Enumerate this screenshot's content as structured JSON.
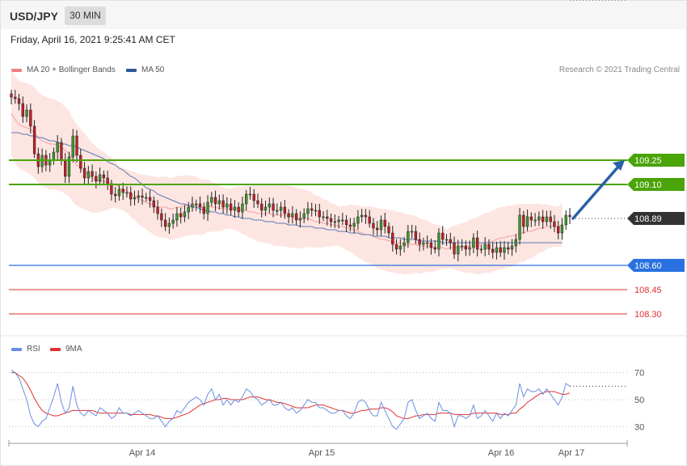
{
  "header": {
    "symbol": "USD/JPY",
    "timeframe": "30 MIN"
  },
  "timestamp": "Friday, April 16, 2021 9:25:41 AM CET",
  "legend": {
    "ma20_label": "MA 20 + Bollinger Bands",
    "ma50_label": "MA 50",
    "ma20_color": "#f08080",
    "ma50_color": "#2d5a9a"
  },
  "copyright": "Research © 2021 Trading Central",
  "rsi_legend": {
    "rsi_label": "RSI",
    "ma9_label": "9MA",
    "rsi_color": "#6a8fe0",
    "ma9_color": "#e03030"
  },
  "chart_data": [
    {
      "type": "candlestick",
      "title": "",
      "ylim": [
        108.2,
        109.75
      ],
      "x_ticks": [
        "Apr 14",
        "Apr 15",
        "Apr 16",
        "Apr 17"
      ],
      "current_price": "108.89",
      "levels": [
        {
          "label": "109.25",
          "value": 109.25,
          "kind": "resistance",
          "color": "#4aa40a"
        },
        {
          "label": "109.10",
          "value": 109.1,
          "kind": "resistance",
          "color": "#4aa40a"
        },
        {
          "label": "108.60",
          "value": 108.6,
          "kind": "support",
          "color": "#2a70e0"
        },
        {
          "label": "108.45",
          "value": 108.45,
          "kind": "support",
          "color": "#e03030"
        },
        {
          "label": "108.30",
          "value": 108.3,
          "kind": "support",
          "color": "#e03030"
        }
      ],
      "close_series": [
        109.64,
        109.63,
        109.6,
        109.52,
        109.56,
        109.46,
        109.29,
        109.21,
        109.28,
        109.22,
        109.25,
        109.3,
        109.36,
        109.25,
        109.15,
        109.27,
        109.4,
        109.28,
        109.2,
        109.14,
        109.18,
        109.15,
        109.12,
        109.16,
        109.14,
        109.1,
        109.04,
        109.03,
        109.07,
        109.05,
        109.05,
        109.01,
        109.02,
        109.03,
        109.02,
        109.02,
        109.0,
        108.96,
        108.92,
        108.88,
        108.84,
        108.86,
        108.88,
        108.92,
        108.9,
        108.93,
        108.96,
        108.98,
        108.98,
        108.96,
        108.92,
        108.99,
        109.02,
        108.98,
        109.0,
        108.96,
        108.98,
        108.94,
        108.96,
        108.93,
        108.98,
        109.04,
        109.04,
        109.0,
        108.98,
        108.94,
        108.96,
        108.98,
        108.94,
        108.94,
        108.96,
        108.92,
        108.9,
        108.92,
        108.88,
        108.89,
        108.92,
        108.95,
        108.94,
        108.94,
        108.9,
        108.9,
        108.89,
        108.87,
        108.87,
        108.88,
        108.88,
        108.85,
        108.84,
        108.86,
        108.9,
        108.91,
        108.9,
        108.86,
        108.83,
        108.82,
        108.88,
        108.84,
        108.8,
        108.73,
        108.7,
        108.72,
        108.74,
        108.81,
        108.81,
        108.76,
        108.73,
        108.74,
        108.74,
        108.71,
        108.7,
        108.8,
        108.76,
        108.76,
        108.74,
        108.67,
        108.72,
        108.72,
        108.7,
        108.71,
        108.77,
        108.7,
        108.7,
        108.73,
        108.7,
        108.68,
        108.71,
        108.68,
        108.71,
        108.7,
        108.72,
        108.76,
        108.91,
        108.84,
        108.9,
        108.88,
        108.88,
        108.9,
        108.87,
        108.9,
        108.87,
        108.84,
        108.8,
        108.85,
        108.91,
        108.9
      ],
      "ma20_series": [
        109.54,
        109.5,
        109.47,
        109.46,
        109.45,
        109.44,
        109.42,
        109.39,
        109.37,
        109.36,
        109.35,
        109.35,
        109.34,
        109.33,
        109.31,
        109.29,
        109.25,
        109.22,
        109.2,
        109.18,
        109.16,
        109.14,
        109.13,
        109.12,
        109.12,
        109.11,
        109.11,
        109.1,
        109.08,
        109.07,
        109.06,
        109.04,
        109.03,
        109.01,
        109.0,
        108.99,
        108.98,
        108.97,
        108.96,
        108.96,
        108.96,
        108.95,
        108.95,
        108.96,
        108.96,
        108.97,
        108.97,
        108.97,
        108.97,
        108.96,
        108.96,
        108.97,
        108.96,
        108.96,
        108.95,
        108.95,
        108.95,
        108.95,
        108.95,
        108.95,
        108.94,
        108.94,
        108.93,
        108.93,
        108.92,
        108.92,
        108.92,
        108.92,
        108.91,
        108.91,
        108.91,
        108.91,
        108.9,
        108.9,
        108.89,
        108.89,
        108.89,
        108.89,
        108.88,
        108.87,
        108.87,
        108.86,
        108.86,
        108.85,
        108.85,
        108.84,
        108.84,
        108.83,
        108.83,
        108.82,
        108.81,
        108.8,
        108.79,
        108.79,
        108.78,
        108.77,
        108.76,
        108.76,
        108.75,
        108.75,
        108.74,
        108.74,
        108.73,
        108.73,
        108.73,
        108.73,
        108.72,
        108.72,
        108.72,
        108.71,
        108.71,
        108.71,
        108.71,
        108.7,
        108.71,
        108.71,
        108.71,
        108.71,
        108.71,
        108.72,
        108.72,
        108.72,
        108.73,
        108.74,
        108.74,
        108.75,
        108.76,
        108.77,
        108.77,
        108.78,
        108.78,
        108.79,
        108.8,
        108.8,
        108.81,
        108.81,
        108.82,
        108.83,
        108.83,
        108.84,
        108.84,
        108.84,
        108.84,
        108.85
      ],
      "ma50_series": [
        109.42,
        109.42,
        109.42,
        109.41,
        109.41,
        109.4,
        109.4,
        109.39,
        109.39,
        109.38,
        109.37,
        109.37,
        109.36,
        109.35,
        109.35,
        109.34,
        109.34,
        109.33,
        109.32,
        109.31,
        109.3,
        109.29,
        109.28,
        109.27,
        109.26,
        109.24,
        109.23,
        109.22,
        109.2,
        109.19,
        109.17,
        109.15,
        109.14,
        109.12,
        109.1,
        109.08,
        109.07,
        109.06,
        109.04,
        109.03,
        109.02,
        109.01,
        109.0,
        108.99,
        108.98,
        108.98,
        108.97,
        108.96,
        108.96,
        108.95,
        108.94,
        108.94,
        108.93,
        108.93,
        108.92,
        108.92,
        108.91,
        108.91,
        108.9,
        108.9,
        108.89,
        108.89,
        108.89,
        108.88,
        108.88,
        108.88,
        108.87,
        108.87,
        108.87,
        108.86,
        108.86,
        108.86,
        108.85,
        108.85,
        108.85,
        108.84,
        108.84,
        108.84,
        108.84,
        108.83,
        108.83,
        108.83,
        108.82,
        108.82,
        108.82,
        108.81,
        108.81,
        108.81,
        108.8,
        108.8,
        108.8,
        108.79,
        108.79,
        108.79,
        108.78,
        108.78,
        108.78,
        108.78,
        108.77,
        108.77,
        108.77,
        108.77,
        108.76,
        108.76,
        108.76,
        108.76,
        108.75,
        108.75,
        108.75,
        108.75,
        108.75,
        108.75,
        108.74,
        108.74,
        108.74,
        108.74,
        108.74,
        108.74,
        108.74,
        108.74,
        108.74,
        108.74,
        108.74,
        108.74,
        108.74,
        108.74,
        108.74,
        108.74,
        108.74,
        108.74,
        108.74,
        108.74,
        108.74,
        108.74,
        108.74,
        108.74,
        108.74,
        108.74,
        108.74,
        108.74,
        108.74,
        108.74,
        108.74,
        108.74
      ],
      "bb_half_width": 0.12,
      "projection": {
        "from": 108.89,
        "to": 109.25
      }
    },
    {
      "type": "line",
      "title": "",
      "ylim": [
        20,
        80
      ],
      "y_ticks": [
        "70",
        "50",
        "30"
      ],
      "rsi_series": [
        72,
        70,
        66,
        58,
        50,
        38,
        32,
        30,
        34,
        36,
        44,
        52,
        62,
        48,
        40,
        44,
        60,
        46,
        40,
        38,
        42,
        40,
        38,
        44,
        42,
        40,
        36,
        38,
        44,
        40,
        40,
        38,
        40,
        42,
        40,
        38,
        36,
        36,
        38,
        34,
        30,
        34,
        36,
        42,
        40,
        44,
        48,
        50,
        52,
        50,
        46,
        54,
        58,
        50,
        54,
        46,
        50,
        46,
        50,
        48,
        52,
        58,
        56,
        52,
        50,
        46,
        48,
        50,
        46,
        46,
        48,
        44,
        42,
        44,
        40,
        42,
        46,
        50,
        48,
        48,
        44,
        44,
        42,
        40,
        40,
        42,
        42,
        38,
        36,
        40,
        48,
        50,
        48,
        42,
        38,
        38,
        48,
        42,
        36,
        30,
        28,
        32,
        36,
        48,
        50,
        42,
        36,
        38,
        40,
        36,
        34,
        48,
        42,
        42,
        40,
        30,
        38,
        38,
        36,
        38,
        46,
        36,
        38,
        42,
        38,
        34,
        40,
        36,
        40,
        38,
        42,
        46,
        62,
        52,
        58,
        56,
        56,
        58,
        54,
        58,
        54,
        50,
        46,
        52,
        62,
        60
      ],
      "ma9_series": [
        70,
        70,
        68,
        66,
        62,
        57,
        51,
        46,
        42,
        40,
        39,
        38,
        38,
        39,
        40,
        41,
        42,
        42,
        42,
        42,
        42,
        42,
        41,
        40,
        40,
        40,
        40,
        40,
        40,
        40,
        40,
        39,
        39,
        39,
        39,
        39,
        39,
        38,
        38,
        37,
        36,
        36,
        36,
        37,
        38,
        39,
        40,
        42,
        44,
        46,
        47,
        48,
        49,
        50,
        50,
        51,
        51,
        50,
        50,
        50,
        50,
        51,
        52,
        52,
        52,
        51,
        50,
        50,
        49,
        48,
        48,
        47,
        46,
        45,
        44,
        44,
        44,
        44,
        45,
        46,
        46,
        46,
        45,
        44,
        43,
        42,
        42,
        41,
        40,
        40,
        41,
        42,
        42,
        43,
        43,
        43,
        44,
        44,
        43,
        41,
        38,
        37,
        36,
        36,
        37,
        38,
        38,
        39,
        39,
        39,
        39,
        40,
        40,
        40,
        40,
        39,
        39,
        39,
        39,
        39,
        40,
        40,
        40,
        40,
        40,
        40,
        40,
        39,
        39,
        39,
        40,
        40,
        43,
        45,
        48,
        50,
        52,
        54,
        55,
        56,
        56,
        56,
        55,
        54,
        54,
        55
      ]
    }
  ]
}
